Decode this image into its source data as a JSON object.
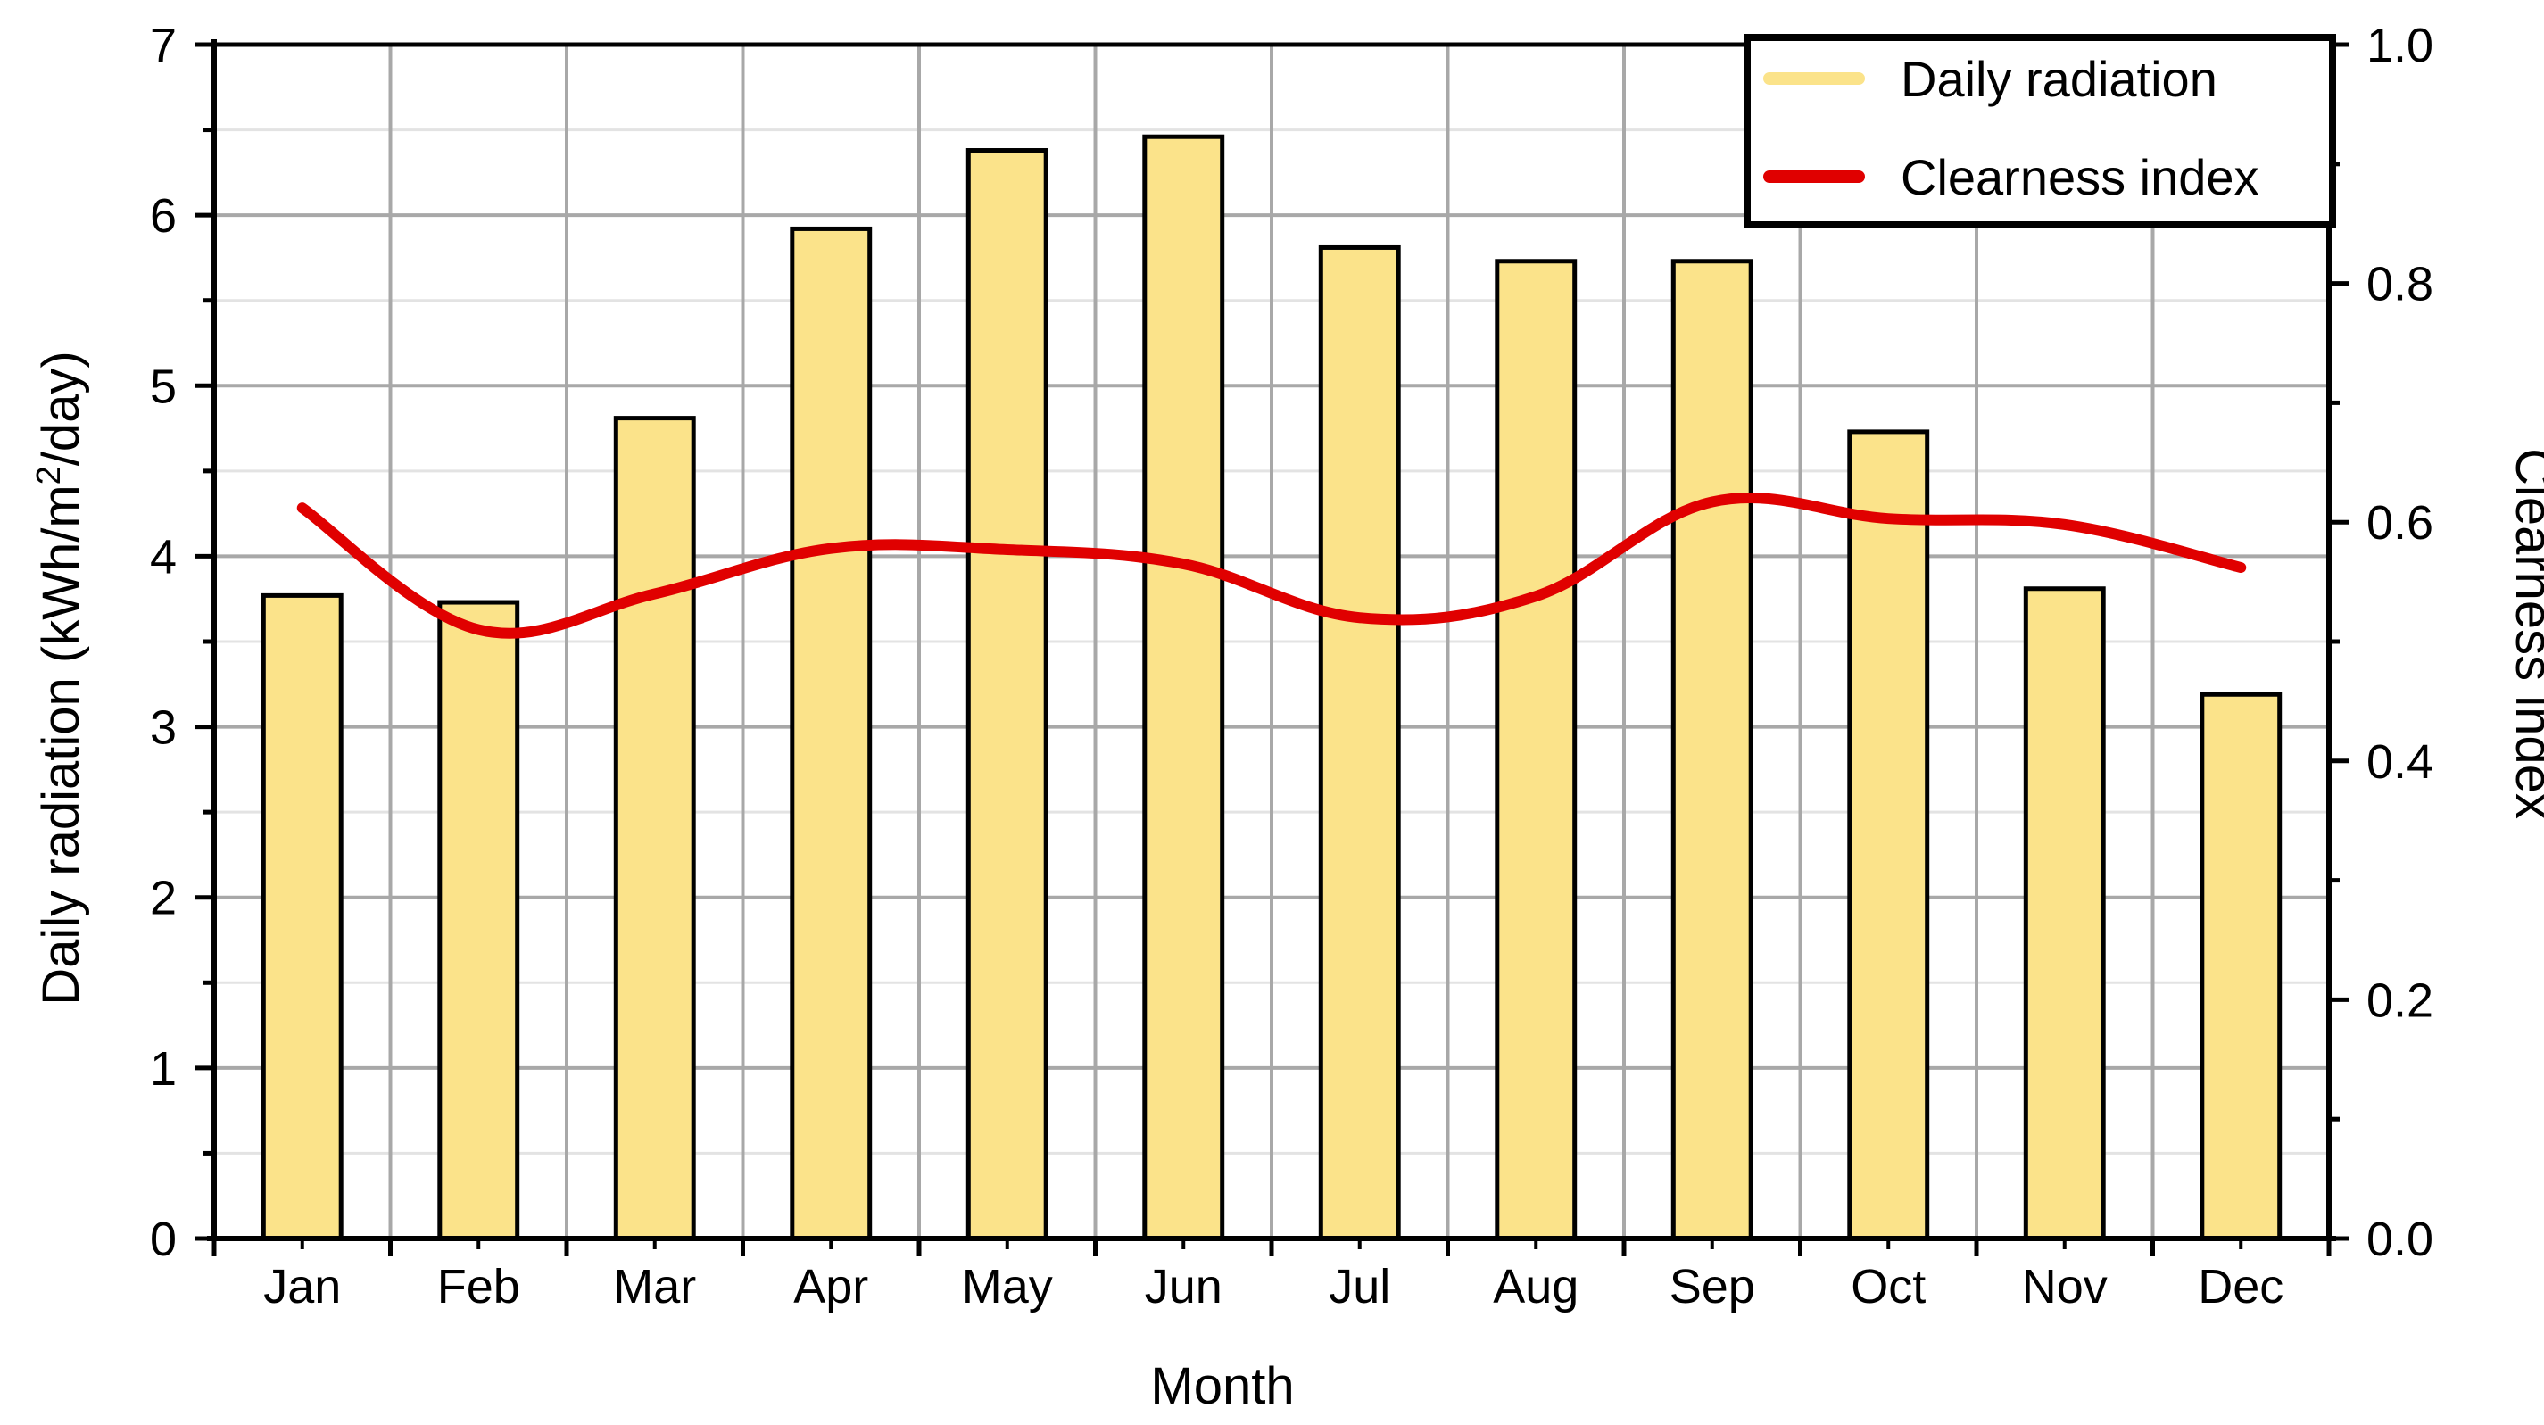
{
  "chart_data": {
    "type": "bar",
    "categories": [
      "Jan",
      "Feb",
      "Mar",
      "Apr",
      "May",
      "Jun",
      "Jul",
      "Aug",
      "Sep",
      "Oct",
      "Nov",
      "Dec"
    ],
    "series": [
      {
        "name": "Daily radiation",
        "type": "bar",
        "axis": "left",
        "color": "#FBE38A",
        "values": [
          3.77,
          3.73,
          4.81,
          5.92,
          6.38,
          6.46,
          5.81,
          5.73,
          5.73,
          4.73,
          3.81,
          3.19
        ]
      },
      {
        "name": "Clearness index",
        "type": "line",
        "axis": "right",
        "color": "#E00000",
        "values": [
          0.612,
          0.51,
          0.54,
          0.578,
          0.577,
          0.565,
          0.52,
          0.538,
          0.617,
          0.603,
          0.598,
          0.562
        ]
      }
    ],
    "xlabel": "Month",
    "ylabel": "Daily radiation (kWh/m²/day)",
    "ylabel_parts": [
      "Daily radiation (kWh/m",
      "2",
      "/day)"
    ],
    "y2label": "Clearness index",
    "ylim": [
      0,
      7
    ],
    "y2lim": [
      0,
      1
    ],
    "yticks": [
      "0",
      "1",
      "2",
      "3",
      "4",
      "5",
      "6",
      "7"
    ],
    "y2ticks": [
      "0.0",
      "0.2",
      "0.4",
      "0.6",
      "0.8",
      "1.0"
    ],
    "grid": true,
    "legend_position": "top-right"
  }
}
